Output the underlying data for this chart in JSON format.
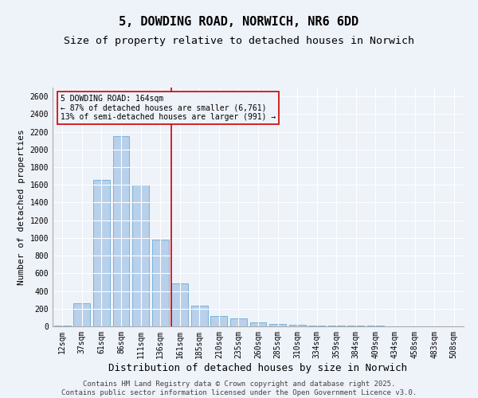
{
  "title": "5, DOWDING ROAD, NORWICH, NR6 6DD",
  "subtitle": "Size of property relative to detached houses in Norwich",
  "xlabel": "Distribution of detached houses by size in Norwich",
  "ylabel": "Number of detached properties",
  "categories": [
    "12sqm",
    "37sqm",
    "61sqm",
    "86sqm",
    "111sqm",
    "136sqm",
    "161sqm",
    "185sqm",
    "210sqm",
    "235sqm",
    "260sqm",
    "285sqm",
    "310sqm",
    "334sqm",
    "359sqm",
    "384sqm",
    "409sqm",
    "434sqm",
    "458sqm",
    "483sqm",
    "508sqm"
  ],
  "values": [
    10,
    265,
    1660,
    2150,
    1600,
    980,
    490,
    230,
    120,
    90,
    45,
    30,
    18,
    10,
    10,
    7,
    5,
    3,
    1,
    2,
    1
  ],
  "bar_color": "#b8d0ea",
  "bar_edge_color": "#6aaad4",
  "vline_color": "#cc0000",
  "vline_index": 6,
  "annotation_text": "5 DOWDING ROAD: 164sqm\n← 87% of detached houses are smaller (6,761)\n13% of semi-detached houses are larger (991) →",
  "annotation_box_color": "#cc0000",
  "ylim": [
    0,
    2700
  ],
  "yticks": [
    0,
    200,
    400,
    600,
    800,
    1000,
    1200,
    1400,
    1600,
    1800,
    2000,
    2200,
    2400,
    2600
  ],
  "background_color": "#eef2f9",
  "grid_color": "#ffffff",
  "footer": "Contains HM Land Registry data © Crown copyright and database right 2025.\nContains public sector information licensed under the Open Government Licence v3.0.",
  "title_fontsize": 11,
  "subtitle_fontsize": 9.5,
  "xlabel_fontsize": 9,
  "ylabel_fontsize": 8,
  "tick_fontsize": 7,
  "footer_fontsize": 6.5
}
